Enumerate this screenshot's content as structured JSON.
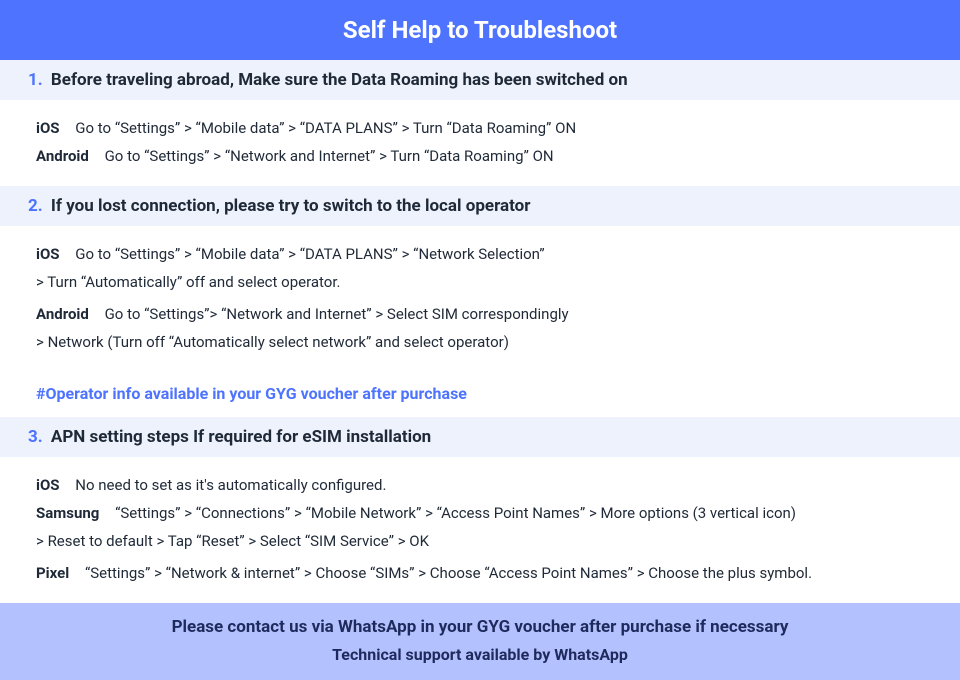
{
  "colors": {
    "brand": "#4d73ff",
    "section_bg": "#edf2fc",
    "footer_bg": "#b3c2ff",
    "text": "#1f2937",
    "footer_text": "#1f2a5c"
  },
  "header": {
    "title": "Self Help to Troubleshoot"
  },
  "sections": [
    {
      "num": "1.",
      "lead": "Before traveling abroad,",
      "rest": "Make sure the Data Roaming has been switched on",
      "items": [
        {
          "platform": "iOS",
          "text": "Go to “Settings” > “Mobile data” > “DATA PLANS” > Turn “Data Roaming” ON"
        },
        {
          "platform": "Android",
          "text": "Go to “Settings” > “Network and Internet” > Turn “Data Roaming” ON"
        }
      ]
    },
    {
      "num": "2.",
      "lead": "",
      "rest": "If you lost connection, please try to switch to the local operator",
      "items": [
        {
          "platform": "iOS",
          "text": "Go to “Settings” > “Mobile data” > “DATA PLANS” > “Network Selection”",
          "cont": "> Turn “Automatically” off and select operator."
        },
        {
          "platform": "Android",
          "text": "Go to “Settings”>  “Network and Internet” > Select SIM correspondingly",
          "cont": "> Network (Turn off “Automatically select network” and select operator)"
        }
      ],
      "note": "#Operator info available in your GYG voucher after purchase"
    },
    {
      "num": "3.",
      "lead": "",
      "rest": "APN setting steps If required for eSIM installation",
      "items": [
        {
          "platform": "iOS",
          "text": "No need to set as it's automatically configured."
        },
        {
          "platform": "Samsung",
          "text": "“Settings” > “Connections” > “Mobile Network” > “Access Point Names” > More options (3 vertical icon)",
          "cont": "> Reset to default > Tap “Reset” > Select “SIM Service” > OK"
        },
        {
          "platform": "Pixel",
          "text": "“Settings” > “Network & internet” > Choose “SIMs” > Choose “Access Point Names” > Choose the plus symbol."
        }
      ]
    }
  ],
  "footer": {
    "line1": "Please contact us via WhatsApp  in your GYG voucher after purchase if necessary",
    "line2": "Technical support available by WhatsApp"
  }
}
